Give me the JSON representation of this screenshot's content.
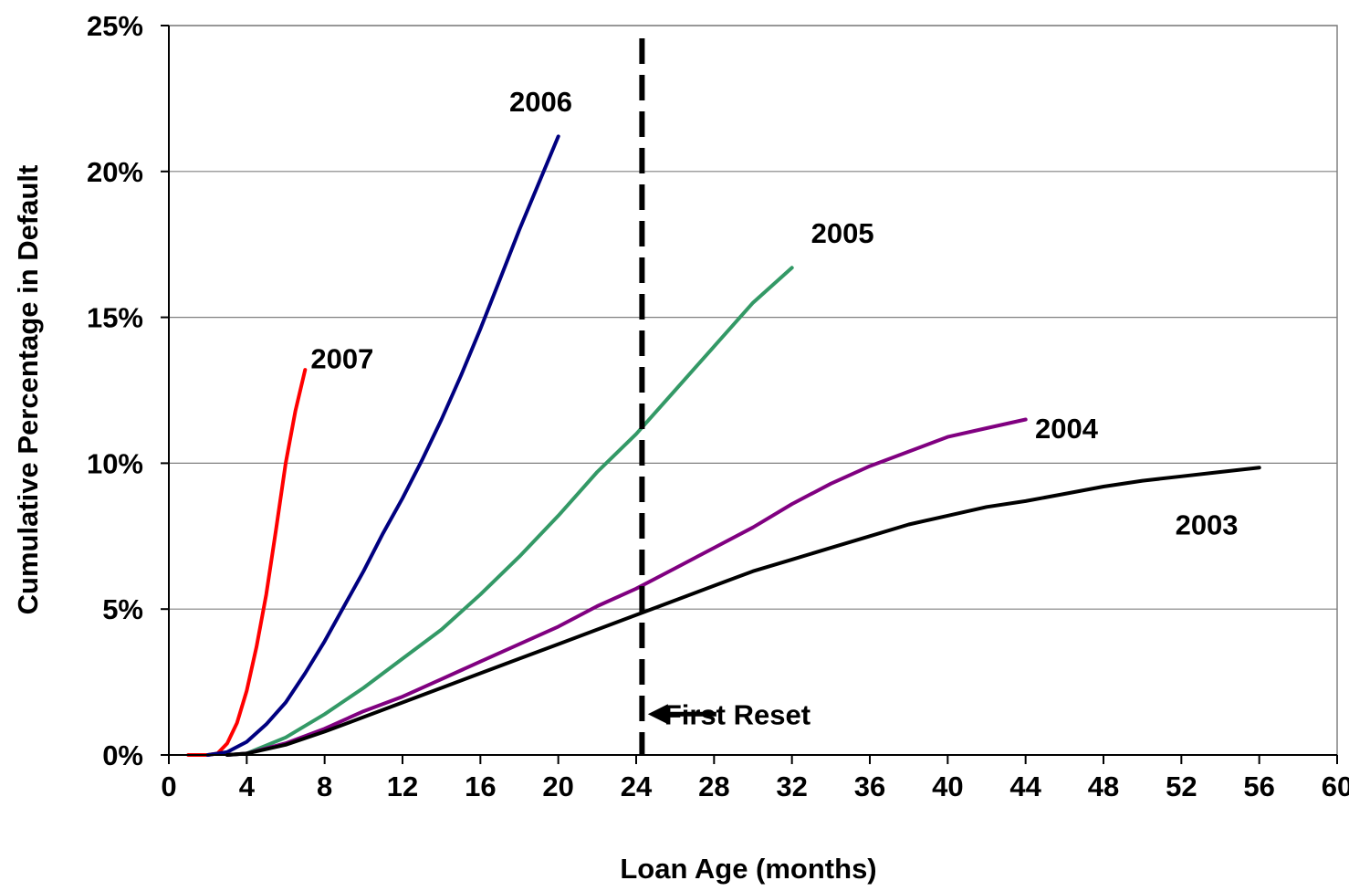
{
  "chart_data": {
    "type": "line",
    "xlabel": "Loan Age (months)",
    "ylabel": "Cumulative Percentage in Default",
    "xlim": [
      0,
      60
    ],
    "ylim": [
      0,
      25
    ],
    "xticks": [
      "0",
      "4",
      "8",
      "12",
      "16",
      "20",
      "24",
      "28",
      "32",
      "36",
      "40",
      "44",
      "48",
      "52",
      "56",
      "60"
    ],
    "yticks": [
      "0%",
      "5%",
      "10%",
      "15%",
      "20%",
      "25%"
    ],
    "grid": "horizontal",
    "colors": {
      "2003": "#000000",
      "2004": "#800080",
      "2005": "#339966",
      "2006": "#000080",
      "2007": "#ff0000",
      "reset_line": "#000000"
    },
    "series": [
      {
        "name": "2007",
        "x": [
          1,
          2,
          2.5,
          3,
          3.5,
          4,
          4.5,
          5,
          5.5,
          6,
          6.5,
          7
        ],
        "y": [
          0,
          0,
          0.05,
          0.4,
          1.1,
          2.2,
          3.7,
          5.5,
          7.7,
          10.0,
          11.8,
          13.2
        ]
      },
      {
        "name": "2006",
        "x": [
          2,
          3,
          4,
          5,
          6,
          7,
          8,
          9,
          10,
          11,
          12,
          13,
          14,
          15,
          16,
          17,
          18,
          19,
          20
        ],
        "y": [
          0,
          0.1,
          0.45,
          1.05,
          1.8,
          2.8,
          3.9,
          5.1,
          6.3,
          7.6,
          8.8,
          10.1,
          11.5,
          13.0,
          14.6,
          16.3,
          18.0,
          19.6,
          21.2
        ]
      },
      {
        "name": "2005",
        "x": [
          3,
          4,
          6,
          8,
          10,
          12,
          14,
          16,
          18,
          20,
          22,
          24,
          26,
          28,
          30,
          32
        ],
        "y": [
          0,
          0.05,
          0.6,
          1.4,
          2.3,
          3.3,
          4.3,
          5.5,
          6.8,
          8.2,
          9.7,
          11.0,
          12.5,
          14.0,
          15.5,
          16.7
        ]
      },
      {
        "name": "2004",
        "x": [
          3,
          4,
          6,
          8,
          10,
          12,
          14,
          16,
          18,
          20,
          22,
          24,
          26,
          28,
          30,
          32,
          34,
          36,
          38,
          40,
          42,
          44
        ],
        "y": [
          0,
          0.05,
          0.4,
          0.9,
          1.5,
          2.0,
          2.6,
          3.2,
          3.8,
          4.4,
          5.1,
          5.7,
          6.4,
          7.1,
          7.8,
          8.6,
          9.3,
          9.9,
          10.4,
          10.9,
          11.2,
          11.5
        ]
      },
      {
        "name": "2003",
        "x": [
          3,
          4,
          6,
          8,
          10,
          12,
          14,
          16,
          18,
          20,
          22,
          24,
          26,
          28,
          30,
          32,
          34,
          36,
          38,
          40,
          42,
          44,
          46,
          48,
          50,
          52,
          54,
          56
        ],
        "y": [
          0,
          0.05,
          0.35,
          0.8,
          1.3,
          1.8,
          2.3,
          2.8,
          3.3,
          3.8,
          4.3,
          4.8,
          5.3,
          5.8,
          6.3,
          6.7,
          7.1,
          7.5,
          7.9,
          8.2,
          8.5,
          8.7,
          8.95,
          9.2,
          9.4,
          9.55,
          9.7,
          9.85
        ]
      }
    ],
    "series_label_anchor": [
      {
        "name": "2007",
        "x": 8.9,
        "y": 13.6
      },
      {
        "name": "2006",
        "x": 19.1,
        "y": 22.4
      },
      {
        "name": "2005",
        "x": 34.6,
        "y": 17.9
      },
      {
        "name": "2004",
        "x": 46.1,
        "y": 11.2
      },
      {
        "name": "2003",
        "x": 53.3,
        "y": 7.9
      }
    ],
    "reset_line_x": 24.3,
    "annotations": [
      {
        "text": "First Reset",
        "arrow_to_x": 24.6,
        "text_x": 29.2,
        "y": 1.4
      }
    ]
  }
}
